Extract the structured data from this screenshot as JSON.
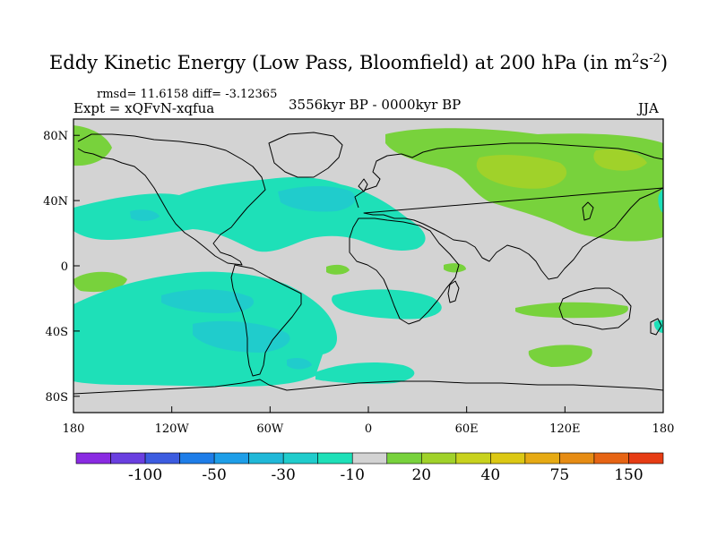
{
  "title": {
    "main": "Eddy Kinetic Energy (Low Pass, Bloomfield) at 200 hPa (in m",
    "sup1": "2",
    "mid": "s",
    "sup2": "-2",
    "end": ")"
  },
  "stats": "rmsd= 11.6158  diff= -3.12365",
  "experiment": "Expt = xQFvN-xqfua",
  "period": "3556kyr BP - 0000kyr BP",
  "season": "JJA",
  "axes": {
    "y_ticks": [
      {
        "label": "80N",
        "lat": 80
      },
      {
        "label": "40N",
        "lat": 40
      },
      {
        "label": "0",
        "lat": 0
      },
      {
        "label": "40S",
        "lat": -40
      },
      {
        "label": "80S",
        "lat": -80
      }
    ],
    "x_ticks": [
      {
        "label": "180",
        "lon": -180
      },
      {
        "label": "120W",
        "lon": -120
      },
      {
        "label": "60W",
        "lon": -60
      },
      {
        "label": "0",
        "lon": 0
      },
      {
        "label": "60E",
        "lon": 60
      },
      {
        "label": "120E",
        "lon": 120
      },
      {
        "label": "180",
        "lon": 180
      }
    ]
  },
  "colorbar": {
    "colors": [
      "#8a2be2",
      "#6a3fe0",
      "#3c5ce0",
      "#1e7de8",
      "#1e9ee8",
      "#20b8d8",
      "#20cccc",
      "#1ee0b8",
      "#d3d3d3",
      "#78d23c",
      "#a0d22a",
      "#c8d21e",
      "#dcc814",
      "#e6aa14",
      "#e68c14",
      "#e66414",
      "#e63c14"
    ],
    "labels": [
      {
        "text": "-100",
        "index": 2
      },
      {
        "text": "-50",
        "index": 4
      },
      {
        "text": "-30",
        "index": 6
      },
      {
        "text": "-10",
        "index": 8
      },
      {
        "text": "20",
        "index": 10
      },
      {
        "text": "40",
        "index": 12
      },
      {
        "text": "75",
        "index": 14
      },
      {
        "text": "150",
        "index": 16
      }
    ]
  },
  "field_colors": {
    "background": "#d3d3d3",
    "neg_light": "#1ee0b8",
    "neg_mid": "#20cccc",
    "neg_dark": "#1e9ee8",
    "pos_light": "#78d23c",
    "pos_mid": "#a0d22a"
  }
}
